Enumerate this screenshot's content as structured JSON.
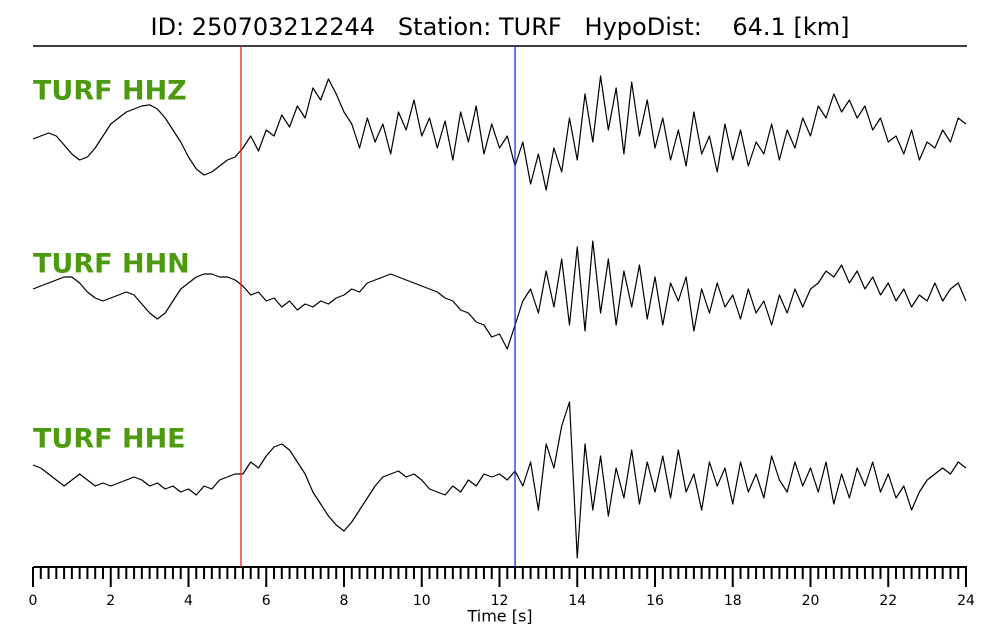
{
  "chart_data": {
    "type": "line",
    "title": "ID: 250703212244   Station: TURF   HypoDist:    64.1 [km]",
    "xlabel": "Time [s]",
    "xlim": [
      0,
      24
    ],
    "xticks": [
      0,
      2,
      4,
      6,
      8,
      10,
      12,
      14,
      16,
      18,
      20,
      22,
      24
    ],
    "xminorticks": [
      0.2,
      0.4,
      0.6,
      0.8,
      1,
      1.2,
      1.4,
      1.6,
      1.8,
      2.2,
      2.4,
      2.6,
      2.8,
      3,
      3.2,
      3.4,
      3.6,
      3.8,
      4.2,
      4.4,
      4.6,
      4.8,
      5,
      5.2,
      5.4,
      5.6,
      5.8,
      6.2,
      6.4,
      6.6,
      6.8,
      7,
      7.2,
      7.4,
      7.6,
      7.8,
      8.2,
      8.4,
      8.6,
      8.8,
      9,
      9.2,
      9.4,
      9.6,
      9.8,
      10.2,
      10.4,
      10.6,
      10.8,
      11,
      11.2,
      11.4,
      11.6,
      11.8,
      12.2,
      12.4,
      12.6,
      12.8,
      13,
      13.2,
      13.4,
      13.6,
      13.8,
      14.2,
      14.4,
      14.6,
      14.8,
      15,
      15.2,
      15.4,
      15.6,
      15.8,
      16.2,
      16.4,
      16.6,
      16.8,
      17,
      17.2,
      17.4,
      17.6,
      17.8,
      18.2,
      18.4,
      18.6,
      18.8,
      19,
      19.2,
      19.4,
      19.6,
      19.8,
      20.2,
      20.4,
      20.6,
      20.8,
      21,
      21.2,
      21.4,
      21.6,
      21.8,
      22.2,
      22.4,
      22.6,
      22.8,
      23,
      23.2,
      23.4,
      23.6,
      23.8
    ],
    "ylim": [
      -1.5,
      1.5
    ],
    "label_color": "#4c9a0e",
    "picks": [
      {
        "x": 5.35,
        "color": "#e8201f"
      },
      {
        "x": 12.4,
        "color": "#1f2fd0"
      }
    ],
    "x": [
      0,
      0.2,
      0.4,
      0.6,
      0.8,
      1,
      1.2,
      1.4,
      1.6,
      1.8,
      2,
      2.2,
      2.4,
      2.6,
      2.8,
      3,
      3.2,
      3.4,
      3.6,
      3.8,
      4,
      4.2,
      4.4,
      4.6,
      4.8,
      5,
      5.2,
      5.4,
      5.6,
      5.8,
      6,
      6.2,
      6.4,
      6.6,
      6.8,
      7,
      7.2,
      7.4,
      7.6,
      7.8,
      8,
      8.2,
      8.4,
      8.6,
      8.8,
      9,
      9.2,
      9.4,
      9.6,
      9.8,
      10,
      10.2,
      10.4,
      10.6,
      10.8,
      11,
      11.2,
      11.4,
      11.6,
      11.8,
      12,
      12.2,
      12.4,
      12.6,
      12.8,
      13,
      13.2,
      13.4,
      13.6,
      13.8,
      14,
      14.2,
      14.4,
      14.6,
      14.8,
      15,
      15.2,
      15.4,
      15.6,
      15.8,
      16,
      16.2,
      16.4,
      16.6,
      16.8,
      17,
      17.2,
      17.4,
      17.6,
      17.8,
      18,
      18.2,
      18.4,
      18.6,
      18.8,
      19,
      19.2,
      19.4,
      19.6,
      19.8,
      20,
      20.2,
      20.4,
      20.6,
      20.8,
      21,
      21.2,
      21.4,
      21.6,
      21.8,
      22,
      22.2,
      22.4,
      22.6,
      22.8,
      23,
      23.2,
      23.4,
      23.6,
      23.8,
      24
    ],
    "series": [
      {
        "name": "TURF HHZ",
        "color": "#000000",
        "values": [
          -0.15,
          -0.1,
          -0.05,
          -0.1,
          -0.25,
          -0.4,
          -0.5,
          -0.45,
          -0.3,
          -0.1,
          0.1,
          0.2,
          0.3,
          0.35,
          0.4,
          0.42,
          0.35,
          0.2,
          0.0,
          -0.2,
          -0.45,
          -0.65,
          -0.75,
          -0.7,
          -0.6,
          -0.5,
          -0.45,
          -0.3,
          -0.1,
          -0.35,
          0.0,
          -0.1,
          0.25,
          0.05,
          0.4,
          0.2,
          0.7,
          0.5,
          0.85,
          0.6,
          0.3,
          0.1,
          -0.3,
          0.2,
          -0.2,
          0.1,
          -0.4,
          0.3,
          0.0,
          0.5,
          -0.1,
          0.2,
          -0.3,
          0.15,
          -0.5,
          0.3,
          -0.2,
          0.4,
          -0.4,
          0.1,
          -0.3,
          -0.1,
          -0.6,
          -0.2,
          -0.9,
          -0.4,
          -1.0,
          -0.3,
          -0.7,
          0.2,
          -0.5,
          0.6,
          -0.2,
          0.9,
          0.0,
          0.7,
          -0.4,
          0.8,
          -0.1,
          0.5,
          -0.3,
          0.2,
          -0.5,
          0.0,
          -0.6,
          0.3,
          -0.4,
          -0.1,
          -0.7,
          0.1,
          -0.5,
          0.0,
          -0.6,
          -0.2,
          -0.4,
          0.1,
          -0.5,
          0.0,
          -0.3,
          0.2,
          -0.1,
          0.4,
          0.2,
          0.6,
          0.3,
          0.5,
          0.2,
          0.4,
          0.0,
          0.2,
          -0.2,
          -0.1,
          -0.4,
          0.0,
          -0.5,
          -0.2,
          -0.3,
          0.0,
          -0.2,
          0.2,
          0.1
        ]
      },
      {
        "name": "TURF HHN",
        "color": "#000000",
        "values": [
          0.1,
          0.15,
          0.2,
          0.25,
          0.3,
          0.3,
          0.2,
          0.05,
          -0.05,
          -0.1,
          -0.05,
          0.0,
          0.05,
          0.0,
          -0.15,
          -0.3,
          -0.4,
          -0.3,
          -0.1,
          0.1,
          0.2,
          0.3,
          0.35,
          0.35,
          0.3,
          0.3,
          0.25,
          0.15,
          0.0,
          0.05,
          -0.1,
          -0.05,
          -0.2,
          -0.1,
          -0.25,
          -0.15,
          -0.2,
          -0.1,
          -0.15,
          -0.05,
          0.0,
          0.1,
          0.05,
          0.2,
          0.25,
          0.3,
          0.35,
          0.3,
          0.25,
          0.2,
          0.15,
          0.1,
          0.05,
          -0.05,
          -0.1,
          -0.25,
          -0.3,
          -0.45,
          -0.5,
          -0.7,
          -0.65,
          -0.9,
          -0.5,
          -0.1,
          0.1,
          -0.3,
          0.4,
          -0.2,
          0.6,
          -0.5,
          0.8,
          -0.6,
          0.9,
          -0.3,
          0.6,
          -0.5,
          0.4,
          -0.2,
          0.5,
          -0.4,
          0.3,
          -0.5,
          0.2,
          -0.1,
          0.3,
          -0.6,
          0.1,
          -0.3,
          0.2,
          -0.2,
          0.0,
          -0.4,
          0.1,
          -0.3,
          -0.1,
          -0.5,
          0.0,
          -0.3,
          0.1,
          -0.2,
          0.1,
          0.2,
          0.4,
          0.3,
          0.5,
          0.2,
          0.4,
          0.1,
          0.3,
          0.0,
          0.2,
          -0.1,
          0.1,
          -0.2,
          0.0,
          -0.1,
          0.2,
          -0.1,
          0.1,
          0.2,
          -0.1
        ]
      },
      {
        "name": "TURF HHE",
        "color": "#000000",
        "values": [
          0.25,
          0.2,
          0.1,
          0.0,
          -0.1,
          0.0,
          0.1,
          0.0,
          -0.1,
          -0.05,
          -0.1,
          -0.05,
          0.0,
          0.05,
          0.0,
          -0.1,
          -0.05,
          -0.15,
          -0.1,
          -0.2,
          -0.15,
          -0.25,
          -0.1,
          -0.15,
          0.0,
          0.05,
          0.1,
          0.1,
          0.3,
          0.2,
          0.4,
          0.55,
          0.6,
          0.5,
          0.3,
          0.1,
          -0.2,
          -0.4,
          -0.6,
          -0.75,
          -0.85,
          -0.7,
          -0.5,
          -0.3,
          -0.1,
          0.05,
          0.1,
          0.15,
          0.05,
          0.1,
          0.0,
          -0.15,
          -0.2,
          -0.25,
          -0.1,
          -0.2,
          0.0,
          -0.1,
          0.1,
          0.05,
          0.1,
          0.0,
          0.15,
          -0.1,
          0.3,
          -0.5,
          0.6,
          0.2,
          0.9,
          1.3,
          -1.3,
          0.6,
          -0.5,
          0.4,
          -0.6,
          0.2,
          -0.3,
          0.5,
          -0.4,
          0.3,
          -0.2,
          0.4,
          -0.3,
          0.5,
          -0.2,
          0.1,
          -0.5,
          0.3,
          -0.1,
          0.2,
          -0.4,
          0.3,
          -0.2,
          0.1,
          -0.3,
          0.4,
          0.0,
          -0.2,
          0.3,
          -0.1,
          0.2,
          -0.2,
          0.3,
          -0.4,
          0.1,
          -0.3,
          0.2,
          -0.1,
          0.3,
          -0.2,
          0.1,
          -0.3,
          -0.1,
          -0.5,
          -0.2,
          0.0,
          0.1,
          0.2,
          0.1,
          0.3,
          0.2
        ]
      }
    ]
  }
}
